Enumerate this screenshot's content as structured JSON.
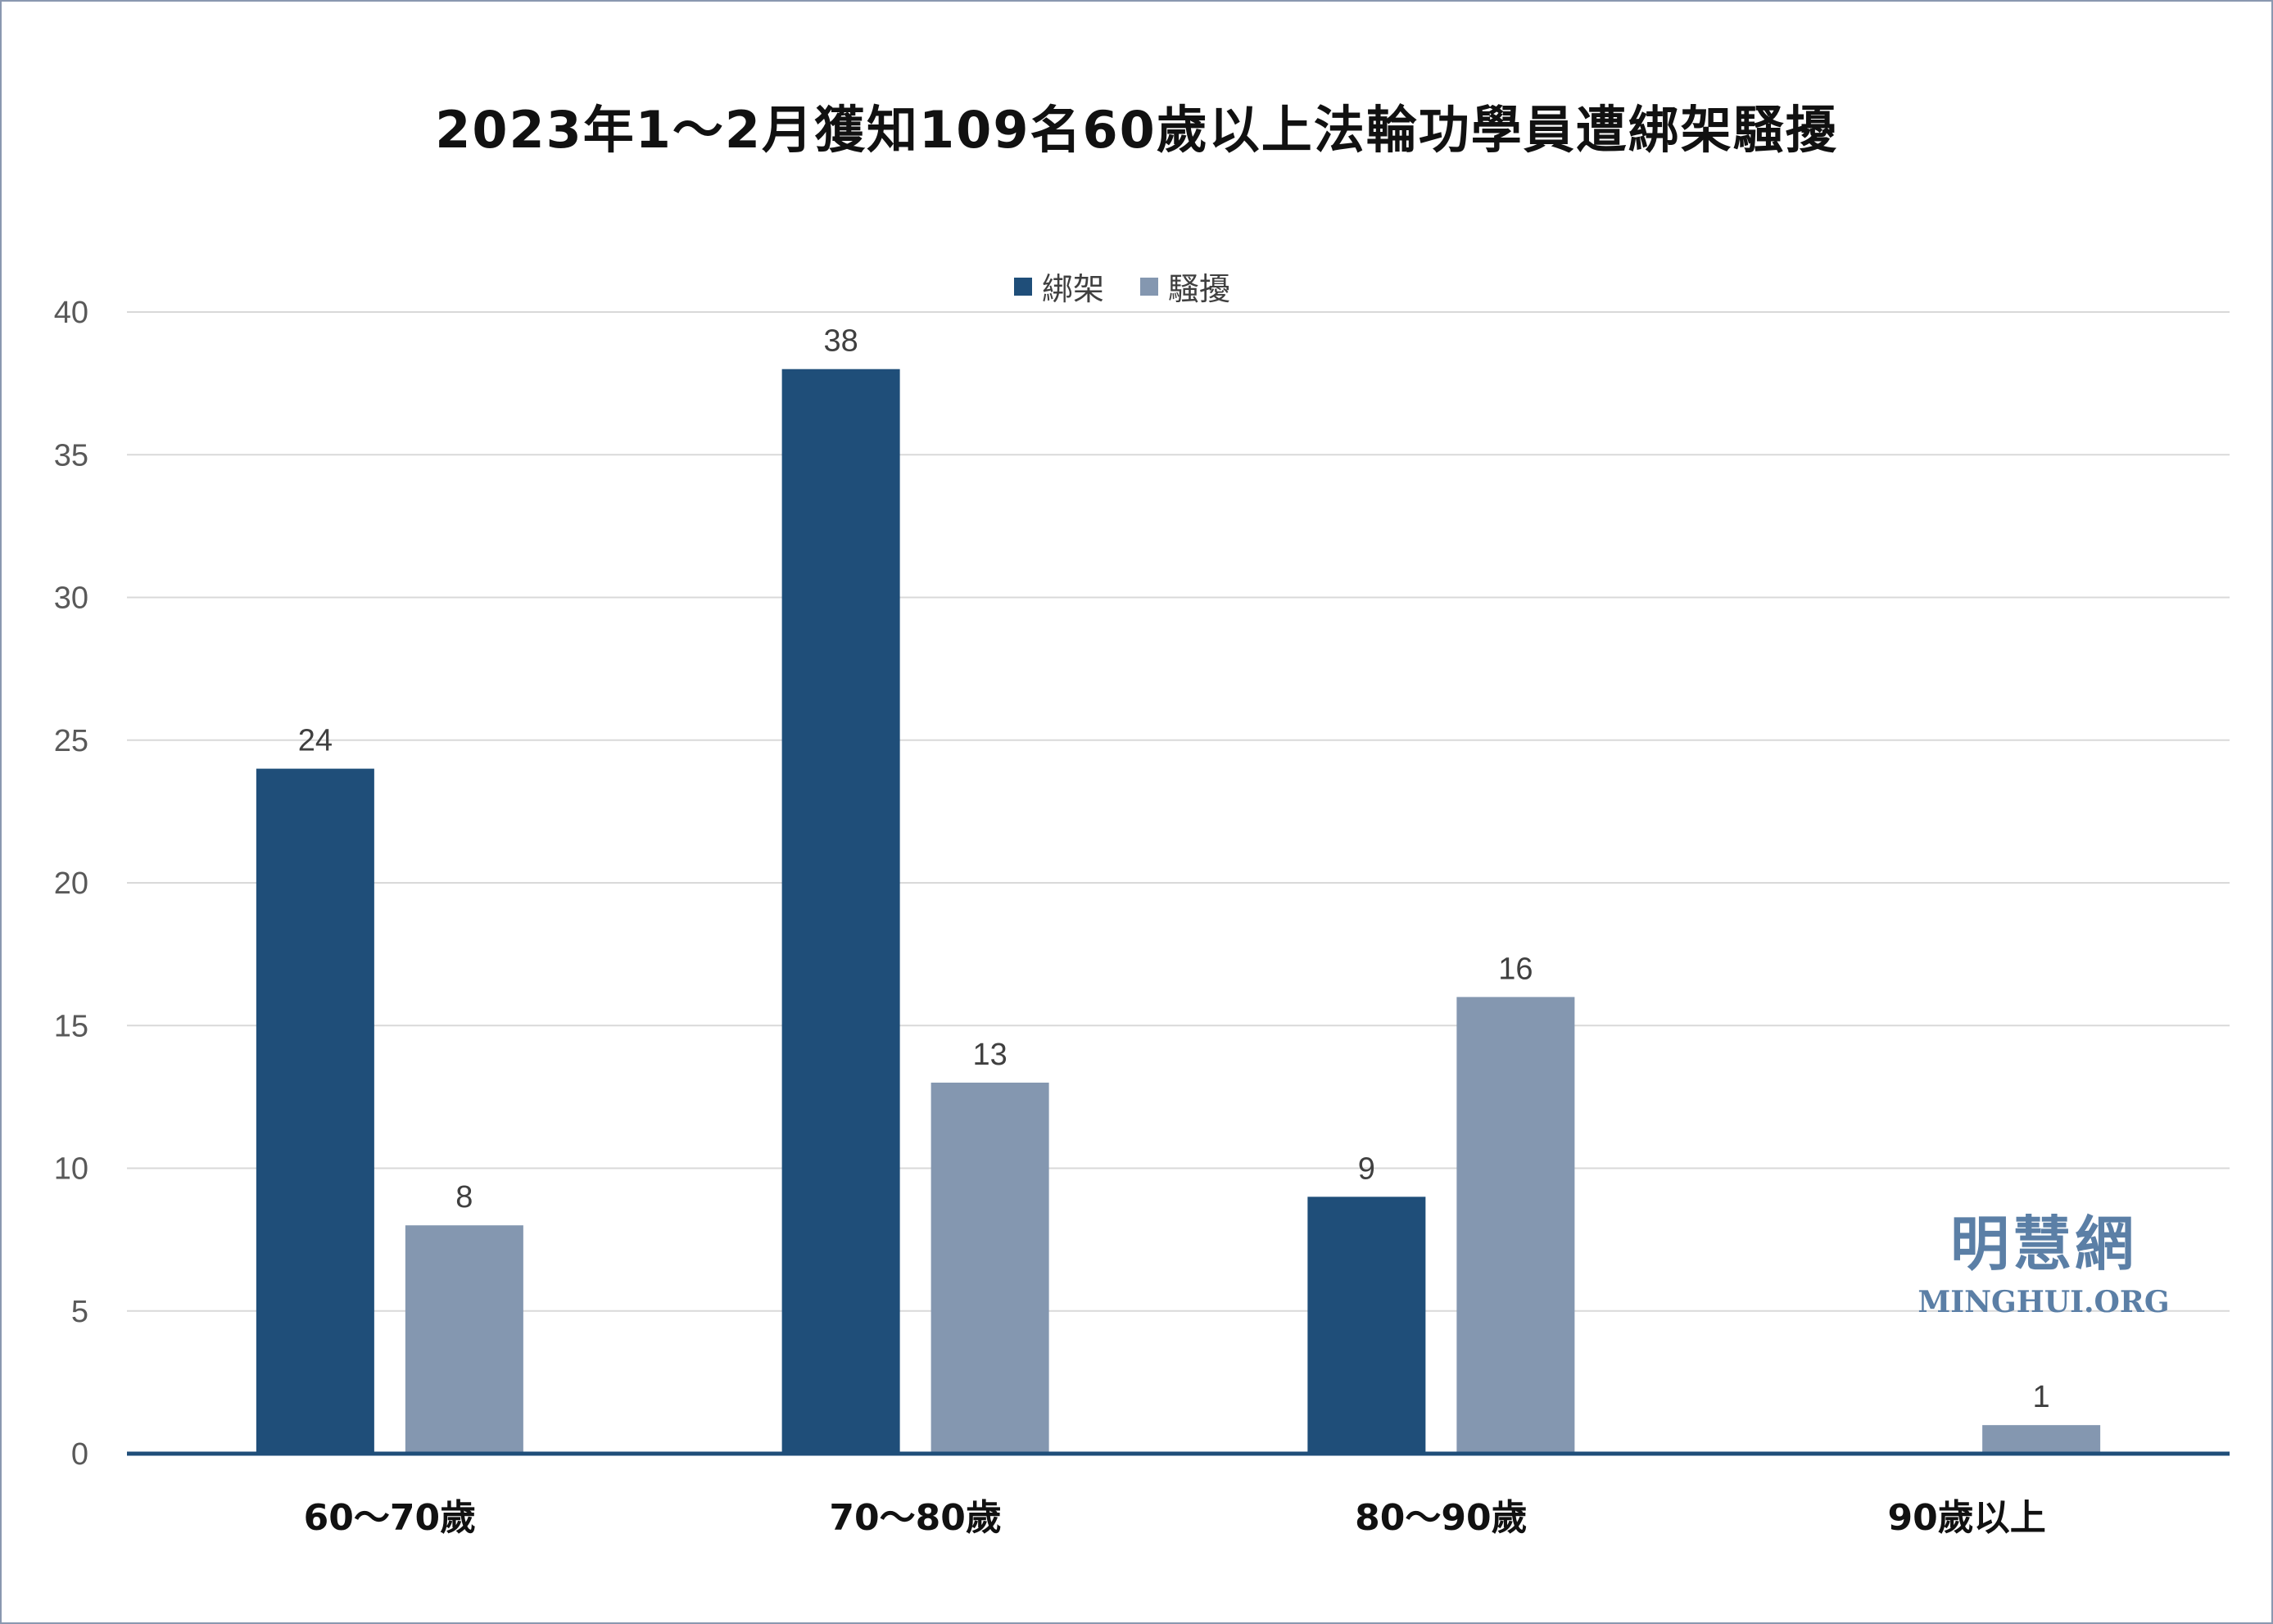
{
  "chart_data": {
    "type": "bar",
    "title": "2023年1～2月獲知109名60歲以上法輪功學員遭綁架騷擾",
    "categories": [
      "60～70歲",
      "70～80歲",
      "80～90歲",
      "90歲以上"
    ],
    "series": [
      {
        "name": "綁架",
        "values": [
          24,
          38,
          9,
          null
        ],
        "color": "#1f4e79"
      },
      {
        "name": "騷擾",
        "values": [
          8,
          13,
          16,
          1
        ],
        "color": "#8497b0"
      }
    ],
    "yticks": [
      "0",
      "5",
      "10",
      "15",
      "20",
      "25",
      "30",
      "35",
      "40"
    ],
    "ylim": [
      0,
      40
    ],
    "grid": true,
    "legend_position": "top-center",
    "axis_color": "#1f4e79",
    "grid_color": "#d9d9d9"
  },
  "watermark": {
    "cn": "明慧網",
    "en": "MINGHUI.ORG"
  }
}
